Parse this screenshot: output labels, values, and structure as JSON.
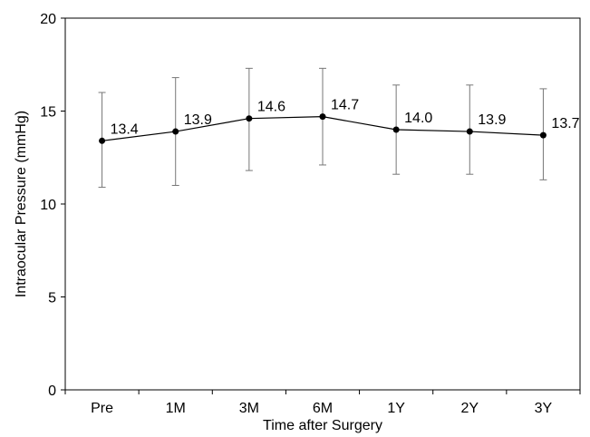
{
  "chart_data": {
    "type": "line",
    "title": "",
    "xlabel": "Time after Surgery",
    "ylabel": "Intraocular Pressure (mmHg)",
    "categories": [
      "Pre",
      "1M",
      "3M",
      "6M",
      "1Y",
      "2Y",
      "3Y"
    ],
    "ylim": [
      0,
      20
    ],
    "yticks": [
      0,
      5,
      10,
      15,
      20
    ],
    "grid": false,
    "legend": "none",
    "series": [
      {
        "values": [
          13.4,
          13.9,
          14.6,
          14.7,
          14.0,
          13.9,
          13.7
        ],
        "data_labels": [
          "13.4",
          "13.9",
          "14.6",
          "14.7",
          "14.0",
          "13.9",
          "13.7"
        ],
        "error_upper": [
          16.0,
          16.8,
          17.3,
          17.3,
          16.4,
          16.4,
          16.2
        ],
        "error_lower": [
          10.9,
          11.0,
          11.8,
          12.1,
          11.6,
          11.6,
          11.3
        ],
        "color": "#000000"
      }
    ]
  }
}
